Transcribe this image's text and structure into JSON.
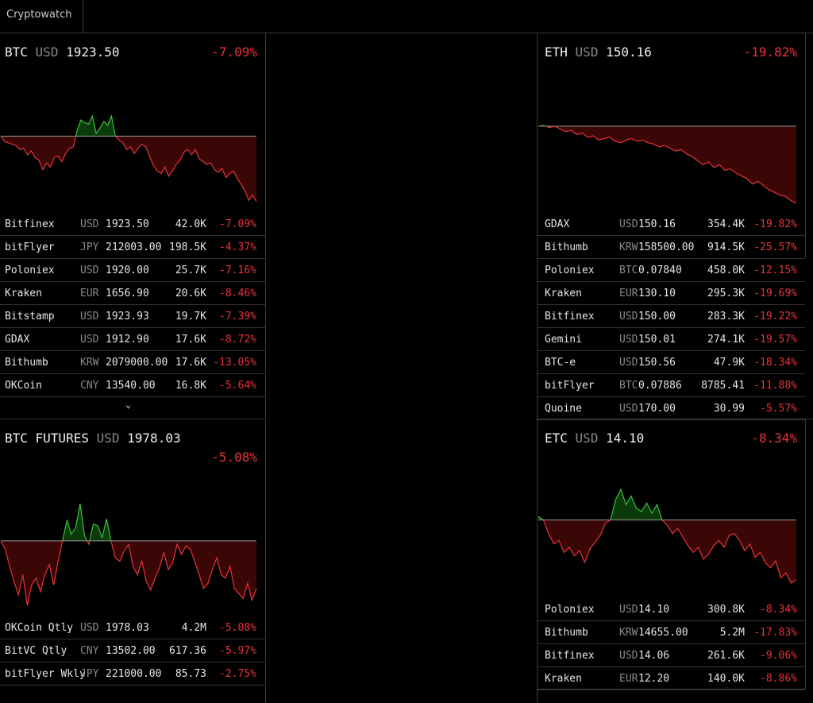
{
  "app": {
    "tab_label": "Cryptowatch"
  },
  "panels": {
    "btc": {
      "symbol": "BTC",
      "currency": "USD",
      "price": "1923.50",
      "change": "-7.09%",
      "rows": [
        {
          "exchange": "Bitfinex",
          "currency": "USD",
          "price": "1923.50",
          "volume": "42.0K",
          "change": "-7.09%"
        },
        {
          "exchange": "bitFlyer",
          "currency": "JPY",
          "price": "212003.00",
          "volume": "198.5K",
          "change": "-4.37%"
        },
        {
          "exchange": "Poloniex",
          "currency": "USD",
          "price": "1920.00",
          "volume": "25.7K",
          "change": "-7.16%"
        },
        {
          "exchange": "Kraken",
          "currency": "EUR",
          "price": "1656.90",
          "volume": "20.6K",
          "change": "-8.46%"
        },
        {
          "exchange": "Bitstamp",
          "currency": "USD",
          "price": "1923.93",
          "volume": "19.7K",
          "change": "-7.39%"
        },
        {
          "exchange": "GDAX",
          "currency": "USD",
          "price": "1912.90",
          "volume": "17.6K",
          "change": "-8.72%"
        },
        {
          "exchange": "Bithumb",
          "currency": "KRW",
          "price": "2079000.00",
          "volume": "17.6K",
          "change": "-13.05%"
        },
        {
          "exchange": "OKCoin",
          "currency": "CNY",
          "price": "13540.00",
          "volume": "16.8K",
          "change": "-5.64%"
        }
      ],
      "expand_icon": "chevron-down-icon"
    },
    "eth": {
      "symbol": "ETH",
      "currency": "USD",
      "price": "150.16",
      "change": "-19.82%",
      "rows": [
        {
          "exchange": "GDAX",
          "currency": "USD",
          "price": "150.16",
          "volume": "354.4K",
          "change": "-19.82%"
        },
        {
          "exchange": "Bithumb",
          "currency": "KRW",
          "price": "158500.00",
          "volume": "914.5K",
          "change": "-25.57%"
        },
        {
          "exchange": "Poloniex",
          "currency": "BTC",
          "price": "0.07840",
          "volume": "458.0K",
          "change": "-12.15%"
        },
        {
          "exchange": "Kraken",
          "currency": "EUR",
          "price": "130.10",
          "volume": "295.3K",
          "change": "-19.69%"
        },
        {
          "exchange": "Bitfinex",
          "currency": "USD",
          "price": "150.00",
          "volume": "283.3K",
          "change": "-19.22%"
        },
        {
          "exchange": "Gemini",
          "currency": "USD",
          "price": "150.01",
          "volume": "274.1K",
          "change": "-19.57%"
        },
        {
          "exchange": "BTC-e",
          "currency": "USD",
          "price": "150.56",
          "volume": "47.9K",
          "change": "-18.34%"
        },
        {
          "exchange": "bitFlyer",
          "currency": "BTC",
          "price": "0.07886",
          "volume": "8785.41",
          "change": "-11.88%"
        },
        {
          "exchange": "Quoine",
          "currency": "USD",
          "price": "170.00",
          "volume": "30.99",
          "change": "-5.57%"
        }
      ]
    },
    "btcf": {
      "symbol": "BTC FUTURES",
      "currency": "USD",
      "price": "1978.03",
      "change": "-5.08%",
      "rows": [
        {
          "exchange": "OKCoin Qtly",
          "currency": "USD",
          "price": "1978.03",
          "volume": "4.2M",
          "change": "-5.08%"
        },
        {
          "exchange": "BitVC Qtly",
          "currency": "CNY",
          "price": "13502.00",
          "volume": "617.36",
          "change": "-5.97%"
        },
        {
          "exchange": "bitFlyer Wkly",
          "currency": "JPY",
          "price": "221000.00",
          "volume": "85.73",
          "change": "-2.75%"
        }
      ]
    },
    "etc": {
      "symbol": "ETC",
      "currency": "USD",
      "price": "14.10",
      "change": "-8.34%",
      "rows": [
        {
          "exchange": "Poloniex",
          "currency": "USD",
          "price": "14.10",
          "volume": "300.8K",
          "change": "-8.34%"
        },
        {
          "exchange": "Bithumb",
          "currency": "KRW",
          "price": "14655.00",
          "volume": "5.2M",
          "change": "-17.83%"
        },
        {
          "exchange": "Bitfinex",
          "currency": "USD",
          "price": "14.06",
          "volume": "261.6K",
          "change": "-9.06%"
        },
        {
          "exchange": "Kraken",
          "currency": "EUR",
          "price": "12.20",
          "volume": "140.0K",
          "change": "-8.86%"
        }
      ]
    }
  },
  "colors": {
    "up": "#39c23b",
    "down": "#e8333a",
    "up_fill": "#0b3a0b",
    "down_fill": "#3a0606",
    "baseline": "#9a9a9a"
  },
  "sparklines": {
    "btc": [
      0.0,
      -0.4,
      -0.5,
      -0.6,
      -0.7,
      -1.0,
      -0.9,
      -1.4,
      -1.1,
      -1.6,
      -1.8,
      -2.5,
      -2.0,
      -2.3,
      -1.6,
      -1.5,
      -1.9,
      -1.3,
      -0.9,
      -0.8,
      0.4,
      1.2,
      1.0,
      0.9,
      1.5,
      0.2,
      0.6,
      1.1,
      0.8,
      1.5,
      0.0,
      -0.3,
      -0.5,
      -1.0,
      -0.8,
      -1.3,
      -0.9,
      -0.6,
      -0.8,
      -1.5,
      -2.2,
      -2.6,
      -2.8,
      -2.3,
      -3.0,
      -2.6,
      -2.1,
      -1.8,
      -1.2,
      -1.0,
      -1.4,
      -1.0,
      -1.7,
      -1.9,
      -2.1,
      -2.0,
      -2.5,
      -2.7,
      -2.4,
      -3.1,
      -2.8,
      -2.6,
      -3.2,
      -3.6,
      -4.1,
      -4.8,
      -4.4,
      -4.9
    ],
    "eth": [
      0.0,
      0.05,
      -0.1,
      0.0,
      -0.2,
      -0.4,
      -0.3,
      -0.6,
      -0.5,
      -0.8,
      -0.7,
      -1.0,
      -0.9,
      -0.8,
      -1.1,
      -1.2,
      -1.0,
      -0.9,
      -1.1,
      -1.0,
      -1.2,
      -1.3,
      -1.5,
      -1.4,
      -1.6,
      -1.8,
      -1.7,
      -2.0,
      -2.2,
      -2.5,
      -2.8,
      -2.6,
      -3.0,
      -2.8,
      -3.2,
      -3.1,
      -3.4,
      -3.6,
      -3.8,
      -4.2,
      -4.0,
      -4.3,
      -4.6,
      -4.8,
      -5.0,
      -5.1,
      -5.4,
      -5.6
    ],
    "btcf": [
      0.0,
      -0.5,
      -1.5,
      -2.4,
      -3.2,
      -2.0,
      -3.8,
      -2.6,
      -2.2,
      -3.0,
      -2.0,
      -1.4,
      -2.6,
      -1.2,
      0.0,
      1.2,
      0.4,
      0.8,
      2.2,
      0.3,
      -0.2,
      1.0,
      0.9,
      0.2,
      1.3,
      0.0,
      -1.0,
      -1.2,
      -0.6,
      -0.2,
      -1.5,
      -2.0,
      -1.2,
      -2.4,
      -2.9,
      -2.2,
      -1.6,
      -0.7,
      -1.7,
      -1.3,
      -0.2,
      -0.8,
      -0.3,
      -0.5,
      -1.2,
      -2.0,
      -2.8,
      -2.5,
      -1.7,
      -1.0,
      -2.0,
      -2.2,
      -1.5,
      -2.8,
      -3.1,
      -3.4,
      -2.5,
      -3.5,
      -2.8
    ],
    "etc": [
      0.2,
      0.0,
      -0.8,
      -1.4,
      -1.2,
      -1.9,
      -1.6,
      -2.1,
      -1.8,
      -2.5,
      -1.7,
      -1.3,
      -0.9,
      -0.2,
      0.0,
      1.2,
      1.8,
      0.9,
      1.4,
      0.7,
      0.5,
      1.0,
      0.4,
      0.9,
      0.0,
      -0.3,
      -0.8,
      -0.5,
      -1.0,
      -1.5,
      -1.9,
      -1.6,
      -2.3,
      -2.0,
      -1.5,
      -1.2,
      -1.6,
      -0.9,
      -0.8,
      -1.2,
      -1.8,
      -1.4,
      -2.2,
      -1.9,
      -2.5,
      -2.8,
      -2.4,
      -3.4,
      -3.1,
      -3.7,
      -3.5
    ]
  }
}
